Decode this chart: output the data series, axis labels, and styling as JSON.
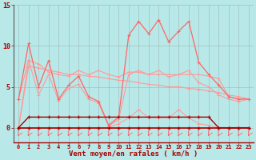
{
  "xlabel": "Vent moyen/en rafales ( km/h )",
  "x": [
    0,
    1,
    2,
    3,
    4,
    5,
    6,
    7,
    8,
    9,
    10,
    11,
    12,
    13,
    14,
    15,
    16,
    17,
    18,
    19,
    20,
    21,
    22,
    23
  ],
  "line_rafales": [
    3.5,
    10.3,
    5.0,
    8.2,
    3.5,
    5.2,
    6.3,
    3.8,
    3.2,
    0.3,
    1.3,
    11.3,
    13.0,
    11.5,
    13.2,
    10.5,
    11.8,
    13.0,
    8.0,
    6.5,
    5.2,
    3.8,
    3.5,
    3.5
  ],
  "line_moyen": [
    3.5,
    8.3,
    4.0,
    6.5,
    3.3,
    4.8,
    5.3,
    3.5,
    3.0,
    0.2,
    1.0,
    6.5,
    7.0,
    6.5,
    7.0,
    6.2,
    6.5,
    7.0,
    5.5,
    5.0,
    4.0,
    3.5,
    3.2,
    3.5
  ],
  "line_max1": [
    0.0,
    8.2,
    7.8,
    6.8,
    6.5,
    6.3,
    7.0,
    6.5,
    7.0,
    6.5,
    6.2,
    6.8,
    6.8,
    6.5,
    6.5,
    6.5,
    6.5,
    6.5,
    6.5,
    6.3,
    6.0,
    3.8,
    3.5,
    3.5
  ],
  "line_max2": [
    0.0,
    7.5,
    7.3,
    7.0,
    6.8,
    6.5,
    6.5,
    6.3,
    6.2,
    6.0,
    5.8,
    5.7,
    5.5,
    5.3,
    5.2,
    5.0,
    5.0,
    4.8,
    4.7,
    4.5,
    4.3,
    4.0,
    3.8,
    3.5
  ],
  "line_zero1": [
    0.0,
    0.0,
    0.0,
    0.0,
    0.0,
    0.0,
    0.0,
    0.0,
    0.0,
    0.0,
    0.0,
    0.0,
    0.0,
    0.0,
    0.0,
    0.0,
    0.0,
    0.0,
    0.0,
    0.0,
    0.0,
    0.0,
    0.0,
    0.0
  ],
  "line_dark1": [
    0.0,
    1.3,
    1.3,
    1.3,
    1.3,
    1.3,
    1.3,
    1.3,
    1.3,
    1.3,
    1.3,
    1.3,
    1.3,
    1.3,
    1.3,
    1.3,
    1.3,
    1.3,
    1.3,
    1.3,
    0.0,
    0.0,
    0.0,
    0.0
  ],
  "line_dark2": [
    0.0,
    0.0,
    0.0,
    0.0,
    0.0,
    0.0,
    0.0,
    0.0,
    0.0,
    0.0,
    0.5,
    1.2,
    2.2,
    1.2,
    1.2,
    1.2,
    2.2,
    1.2,
    0.5,
    0.3,
    0.0,
    0.0,
    0.0,
    0.0
  ],
  "ylim": [
    0,
    15
  ],
  "yticks": [
    0,
    5,
    10,
    15
  ],
  "bg_color": "#b8e8e8",
  "grid_color": "#888888",
  "color_light": "#ff9999",
  "color_mid": "#ff6666",
  "color_dark": "#aa0000",
  "color_red": "#cc0000"
}
